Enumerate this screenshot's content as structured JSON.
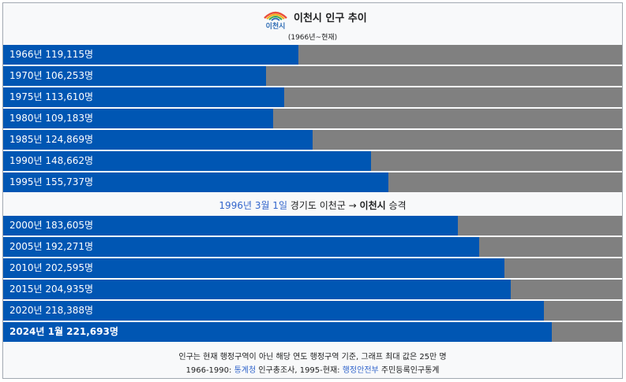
{
  "header": {
    "logo_text": "이천시",
    "title": "이천시 인구 추이",
    "subtitle": "(1966년~현재)"
  },
  "colors": {
    "bar": "#0056b3",
    "track": "#808080",
    "background": "#f8f9fa",
    "link": "#3366cc"
  },
  "note": {
    "link_date": "1996년 3월 1일",
    "text_a": " 경기도 이천군 → ",
    "text_bold": "이천시",
    "text_b": " 승격"
  },
  "footer": {
    "line1": "인구는 현재 행정구역이 아닌 해당 연도 행정구역 기준, 그래프 최대 값은 25만 명",
    "line2_a": "1966-1990: ",
    "line2_link1": "통계청",
    "line2_b": " 인구총조사, 1995-현재: ",
    "line2_link2": "행정안전부",
    "line2_c": " 주민등록인구통계"
  },
  "chart_data": {
    "type": "bar",
    "orientation": "horizontal",
    "max": 250000,
    "categories": [
      "1966년",
      "1970년",
      "1975년",
      "1980년",
      "1985년",
      "1990년",
      "1995년",
      "2000년",
      "2005년",
      "2010년",
      "2015년",
      "2020년",
      "2024년 1월"
    ],
    "values": [
      119115,
      106253,
      113610,
      109183,
      124869,
      148662,
      155737,
      183605,
      192271,
      202595,
      204935,
      218388,
      221693
    ],
    "labels": [
      "1966년 119,115명",
      "1970년 106,253명",
      "1975년 113,610명",
      "1980년 109,183명",
      "1985년 124,869명",
      "1990년 148,662명",
      "1995년 155,737명",
      "2000년 183,605명",
      "2005년 192,271명",
      "2010년 202,595명",
      "2015년 204,935명",
      "2020년 218,388명",
      "2024년 1월 221,693명"
    ]
  }
}
